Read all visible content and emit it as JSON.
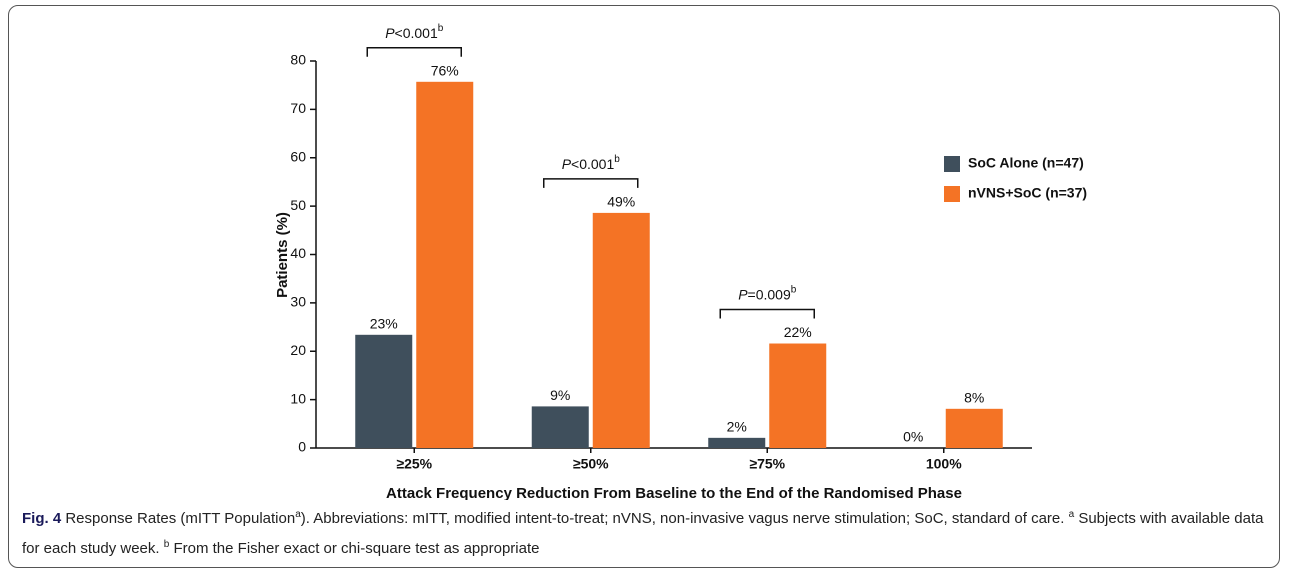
{
  "chart_data": {
    "type": "bar",
    "y_label": "Patients (%)",
    "x_label": "Attack Frequency Reduction From Baseline to the End of the Randomised Phase",
    "categories": [
      "≥25%",
      "≥50%",
      "≥75%",
      "100%"
    ],
    "series": [
      {
        "name": "SoC Alone (n=47)",
        "color": "#3f4f5c",
        "values": [
          23.4,
          8.6,
          2.1,
          0
        ],
        "value_labels": [
          "23%",
          "9%",
          "2%",
          "0%"
        ]
      },
      {
        "name": "nVNS+SoC (n=37)",
        "color": "#f47325",
        "values": [
          75.7,
          48.6,
          21.6,
          8.1
        ],
        "value_labels": [
          "76%",
          "49%",
          "22%",
          "8%"
        ]
      }
    ],
    "ylim": [
      0,
      80
    ],
    "yticks": [
      0,
      10,
      20,
      30,
      40,
      50,
      60,
      70,
      80
    ],
    "legend": "upper right",
    "annotations": [
      {
        "symbol": "P",
        "text": "<0.001",
        "note": "b"
      },
      {
        "symbol": "P",
        "text": "<0.001",
        "note": "b"
      },
      {
        "symbol": "P",
        "text": "=0.009",
        "note": "b"
      }
    ]
  },
  "caption": {
    "label": "Fig. 4",
    "parts": [
      {
        "text": " Response Rates (mITT Population"
      },
      {
        "sup": "a"
      },
      {
        "text": "). Abbreviations: mITT, modified intent-to-treat; nVNS, non-invasive vagus nerve stimulation; SoC, standard of care. "
      },
      {
        "sup": "a"
      },
      {
        "text": " Subjects with available data for each study week. "
      },
      {
        "sup": "b"
      },
      {
        "text": " From the Fisher exact or chi-square test as appropriate"
      }
    ]
  }
}
